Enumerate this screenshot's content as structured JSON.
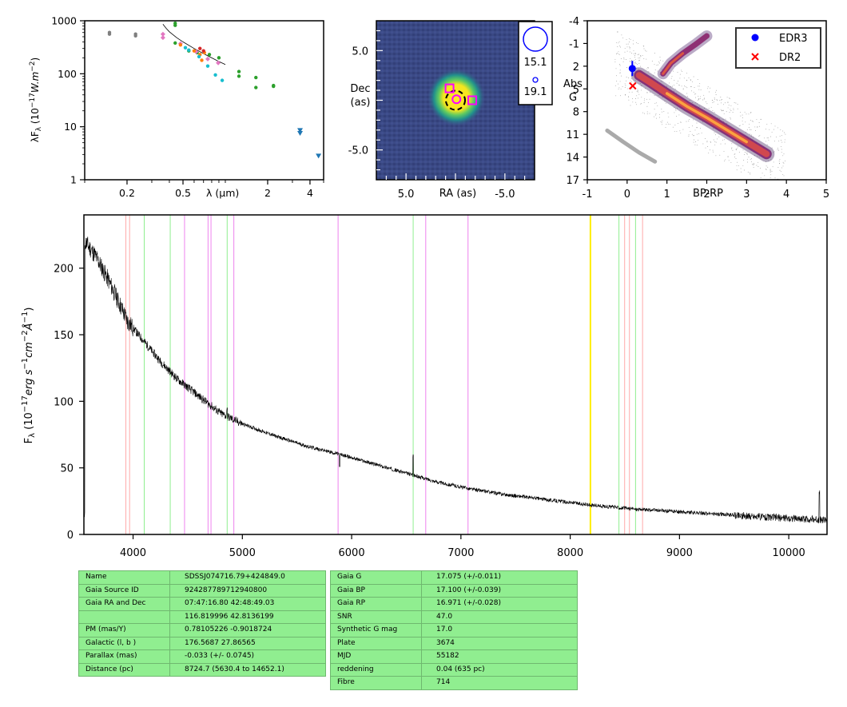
{
  "chart_data": [
    {
      "type": "scatter",
      "id": "sed",
      "xlabel": "λ (μm)",
      "ylabel": "λF_λ (10^-17 W.m^-2)",
      "xscale": "log",
      "yscale": "log",
      "xlim": [
        0.1,
        5.0
      ],
      "ylim": [
        1,
        1000
      ],
      "xticks": [
        {
          "v": 0.2,
          "label": "0.2"
        },
        {
          "v": 0.5,
          "label": "0.5"
        },
        {
          "v": 2,
          "label": "2"
        },
        {
          "v": 4,
          "label": "4"
        }
      ],
      "yticks": [
        {
          "v": 1,
          "label": "1"
        },
        {
          "v": 10,
          "label": "10"
        },
        {
          "v": 100,
          "label": "100"
        },
        {
          "v": 1000,
          "label": "1000"
        }
      ],
      "spectrum_overlay": [
        [
          0.36,
          860
        ],
        [
          0.38,
          720
        ],
        [
          0.4,
          620
        ],
        [
          0.45,
          480
        ],
        [
          0.5,
          400
        ],
        [
          0.6,
          300
        ],
        [
          0.7,
          240
        ],
        [
          0.8,
          200
        ],
        [
          0.9,
          170
        ],
        [
          1.0,
          150
        ]
      ],
      "groups": [
        {
          "color": "#7f7f7f",
          "marker": "circle",
          "points": [
            [
              0.15,
              600
            ],
            [
              0.15,
              560
            ],
            [
              0.23,
              560
            ],
            [
              0.23,
              520
            ]
          ]
        },
        {
          "color": "#2ca02c",
          "marker": "circle",
          "points": [
            [
              0.44,
              900
            ],
            [
              0.44,
              820
            ],
            [
              0.44,
              380
            ],
            [
              0.55,
              270
            ],
            [
              0.63,
              250
            ],
            [
              0.77,
              230
            ],
            [
              0.9,
              200
            ],
            [
              1.25,
              110
            ],
            [
              1.25,
              90
            ],
            [
              1.65,
              85
            ],
            [
              1.65,
              55
            ],
            [
              2.2,
              60
            ],
            [
              2.2,
              58
            ]
          ]
        },
        {
          "color": "#e377c2",
          "marker": "diamond",
          "points": [
            [
              0.36,
              560
            ],
            [
              0.36,
              480
            ],
            [
              0.48,
              370
            ],
            [
              0.62,
              260
            ],
            [
              0.75,
              190
            ],
            [
              0.89,
              160
            ]
          ]
        },
        {
          "color": "#ff7f0e",
          "marker": "circle",
          "points": [
            [
              0.48,
              350
            ],
            [
              0.6,
              270
            ],
            [
              0.66,
              230
            ],
            [
              0.68,
              180
            ],
            [
              0.71,
              250
            ]
          ]
        },
        {
          "color": "#17becf",
          "marker": "circle",
          "points": [
            [
              0.52,
              310
            ],
            [
              0.55,
              280
            ],
            [
              0.65,
              210
            ],
            [
              0.75,
              140
            ],
            [
              0.85,
              95
            ],
            [
              0.95,
              75
            ]
          ]
        },
        {
          "color": "#1f77b4",
          "marker": "triangle-down",
          "points": [
            [
              3.4,
              8.5
            ],
            [
              3.4,
              7.5
            ],
            [
              4.6,
              2.8
            ]
          ]
        },
        {
          "color": "#d62728",
          "marker": "circle",
          "points": [
            [
              0.66,
              300
            ],
            [
              0.7,
              270
            ]
          ]
        }
      ]
    },
    {
      "type": "heatmap",
      "id": "image",
      "xlabel": "RA (as)",
      "ylabel": "Dec (as)",
      "xlim": [
        8.0,
        -8.0
      ],
      "ylim": [
        -8.0,
        8.0
      ],
      "xticks": [
        {
          "v": 5.0,
          "label": "5.0"
        },
        {
          "v": -5.0,
          "label": "-5.0"
        }
      ],
      "yticks": [
        {
          "v": 5.0,
          "label": "5.0"
        },
        {
          "v": -5.0,
          "label": "-5.0"
        }
      ],
      "legend": [
        {
          "label": "15.1",
          "circle": "large"
        },
        {
          "label": "19.1",
          "circle": "small"
        }
      ],
      "markers": [
        {
          "kind": "dashed-circle",
          "ra": 0.0,
          "dec": 0.0,
          "color": "#000000"
        },
        {
          "kind": "circle",
          "ra": -0.1,
          "dec": 0.1,
          "color": "#ff00ff"
        },
        {
          "kind": "square",
          "ra": 0.6,
          "dec": 1.2,
          "color": "#ff00ff"
        },
        {
          "kind": "square",
          "ra": -1.7,
          "dec": 0.0,
          "color": "#ff00ff"
        }
      ]
    },
    {
      "type": "scatter",
      "id": "hrd",
      "xlabel": "BP-RP",
      "ylabel": "Abs G",
      "xlim": [
        -1,
        5
      ],
      "ylim": [
        17,
        -4
      ],
      "xticks": [
        {
          "v": -1,
          "label": "-1"
        },
        {
          "v": 0,
          "label": "0"
        },
        {
          "v": 1,
          "label": "1"
        },
        {
          "v": 2,
          "label": "2"
        },
        {
          "v": 3,
          "label": "3"
        },
        {
          "v": 4,
          "label": "4"
        },
        {
          "v": 5,
          "label": "5"
        }
      ],
      "yticks": [
        {
          "v": -4,
          "label": "-4"
        },
        {
          "v": -1,
          "label": "-1"
        },
        {
          "v": 2,
          "label": "2"
        },
        {
          "v": 5,
          "label": "5"
        },
        {
          "v": 8,
          "label": "8"
        },
        {
          "v": 11,
          "label": "11"
        },
        {
          "v": 14,
          "label": "14"
        },
        {
          "v": 17,
          "label": "17"
        }
      ],
      "legend": [
        {
          "label": "EDR3",
          "color": "#0000ff",
          "marker": "circle"
        },
        {
          "label": "DR2",
          "color": "#ff0000",
          "marker": "x"
        }
      ],
      "points": [
        {
          "series": "EDR3",
          "x": 0.13,
          "y": 2.3,
          "yerr": 1.0
        },
        {
          "series": "DR2",
          "x": 0.14,
          "y": 4.6
        }
      ],
      "density": {
        "main_sequence": [
          [
            0.3,
            3.2
          ],
          [
            0.6,
            4.2
          ],
          [
            1.0,
            5.6
          ],
          [
            1.5,
            7.3
          ],
          [
            2.0,
            8.8
          ],
          [
            2.5,
            10.4
          ],
          [
            3.0,
            12.0
          ],
          [
            3.5,
            13.6
          ]
        ],
        "giant_branch": [
          [
            0.9,
            3.0
          ],
          [
            1.1,
            1.6
          ],
          [
            1.4,
            0.3
          ],
          [
            1.7,
            -0.8
          ],
          [
            2.0,
            -2.0
          ]
        ],
        "white_dwarfs": [
          [
            -0.5,
            10.5
          ],
          [
            -0.1,
            12.0
          ],
          [
            0.3,
            13.4
          ],
          [
            0.7,
            14.6
          ]
        ]
      }
    },
    {
      "type": "line",
      "id": "spectrum",
      "xlabel": "",
      "ylabel": "F_λ (10^-17 erg s^-1 cm^-2 Å^-1)",
      "xlim": [
        3550,
        10350
      ],
      "ylim": [
        0,
        240
      ],
      "xticks": [
        {
          "v": 4000,
          "label": "4000"
        },
        {
          "v": 5000,
          "label": "5000"
        },
        {
          "v": 6000,
          "label": "6000"
        },
        {
          "v": 7000,
          "label": "7000"
        },
        {
          "v": 8000,
          "label": "8000"
        },
        {
          "v": 9000,
          "label": "9000"
        },
        {
          "v": 10000,
          "label": "10000"
        }
      ],
      "yticks": [
        {
          "v": 0,
          "label": "0"
        },
        {
          "v": 50,
          "label": "50"
        },
        {
          "v": 100,
          "label": "100"
        },
        {
          "v": 150,
          "label": "150"
        },
        {
          "v": 200,
          "label": "200"
        }
      ],
      "continuum": [
        [
          3560,
          220
        ],
        [
          3650,
          210
        ],
        [
          3750,
          195
        ],
        [
          3850,
          178
        ],
        [
          3950,
          160
        ],
        [
          4100,
          145
        ],
        [
          4250,
          130
        ],
        [
          4400,
          117
        ],
        [
          4600,
          104
        ],
        [
          4800,
          91
        ],
        [
          5000,
          83
        ],
        [
          5300,
          74
        ],
        [
          5600,
          66
        ],
        [
          5900,
          60
        ],
        [
          6200,
          53
        ],
        [
          6500,
          46
        ],
        [
          6800,
          39
        ],
        [
          7100,
          34
        ],
        [
          7400,
          30
        ],
        [
          7800,
          26
        ],
        [
          8200,
          22
        ],
        [
          8600,
          19
        ],
        [
          9000,
          17
        ],
        [
          9400,
          15
        ],
        [
          9800,
          13
        ],
        [
          10300,
          11
        ]
      ],
      "features": [
        [
          4860,
          7
        ],
        [
          5890,
          -10
        ],
        [
          6563,
          15
        ],
        [
          10280,
          22
        ]
      ],
      "vlines": [
        {
          "x": 3934,
          "color": "#ffaaaa"
        },
        {
          "x": 3968,
          "color": "#ffaaaa"
        },
        {
          "x": 4102,
          "color": "#90ee90"
        },
        {
          "x": 4340,
          "color": "#90ee90"
        },
        {
          "x": 4471,
          "color": "#ee82ee"
        },
        {
          "x": 4686,
          "color": "#ee82ee"
        },
        {
          "x": 4713,
          "color": "#ee82ee"
        },
        {
          "x": 4861,
          "color": "#90ee90"
        },
        {
          "x": 4922,
          "color": "#ee82ee"
        },
        {
          "x": 5876,
          "color": "#ee82ee"
        },
        {
          "x": 6563,
          "color": "#90ee90"
        },
        {
          "x": 6678,
          "color": "#ee82ee"
        },
        {
          "x": 7065,
          "color": "#ee82ee"
        },
        {
          "x": 8185,
          "color": "#ffee00"
        },
        {
          "x": 8446,
          "color": "#90ee90"
        },
        {
          "x": 8498,
          "color": "#ffaaaa"
        },
        {
          "x": 8542,
          "color": "#ffaaaa"
        },
        {
          "x": 8598,
          "color": "#90ee90"
        },
        {
          "x": 8662,
          "color": "#ffaaaa"
        }
      ]
    }
  ],
  "table_left": [
    {
      "key": "Name",
      "value": "SDSSJ074716.79+424849.0"
    },
    {
      "key": "Gaia Source ID",
      "value": "924287789712940800"
    },
    {
      "key": "Gaia RA and Dec",
      "value": "07:47:16.80    42:48:49.03"
    },
    {
      "key": "",
      "value": "116.819996    42.8136199"
    },
    {
      "key": "PM (mas/Y)",
      "value": "0.78105226    -0.9018724"
    },
    {
      "key": "Galactic (l, b )",
      "value": "176.5687    27.86565"
    },
    {
      "key": "Parallax (mas)",
      "value": "-0.033 (+/- 0.0745)"
    },
    {
      "key": "Distance (pc)",
      "value": "8724.7 (5630.4 to 14652.1)"
    }
  ],
  "table_right": [
    {
      "key": "Gaia G",
      "value": "17.075 (+/-0.011)"
    },
    {
      "key": "Gaia BP",
      "value": "17.100 (+/-0.039)"
    },
    {
      "key": "Gaia RP",
      "value": "16.971 (+/-0.028)"
    },
    {
      "key": "SNR",
      "value": "47.0"
    },
    {
      "key": "Synthetic G mag",
      "value": "17.0"
    },
    {
      "key": "Plate",
      "value": "3674"
    },
    {
      "key": "MJD",
      "value": "55182"
    },
    {
      "key": "reddening",
      "value": "0.04 (635 pc)"
    },
    {
      "key": "Fibre",
      "value": "714"
    }
  ]
}
